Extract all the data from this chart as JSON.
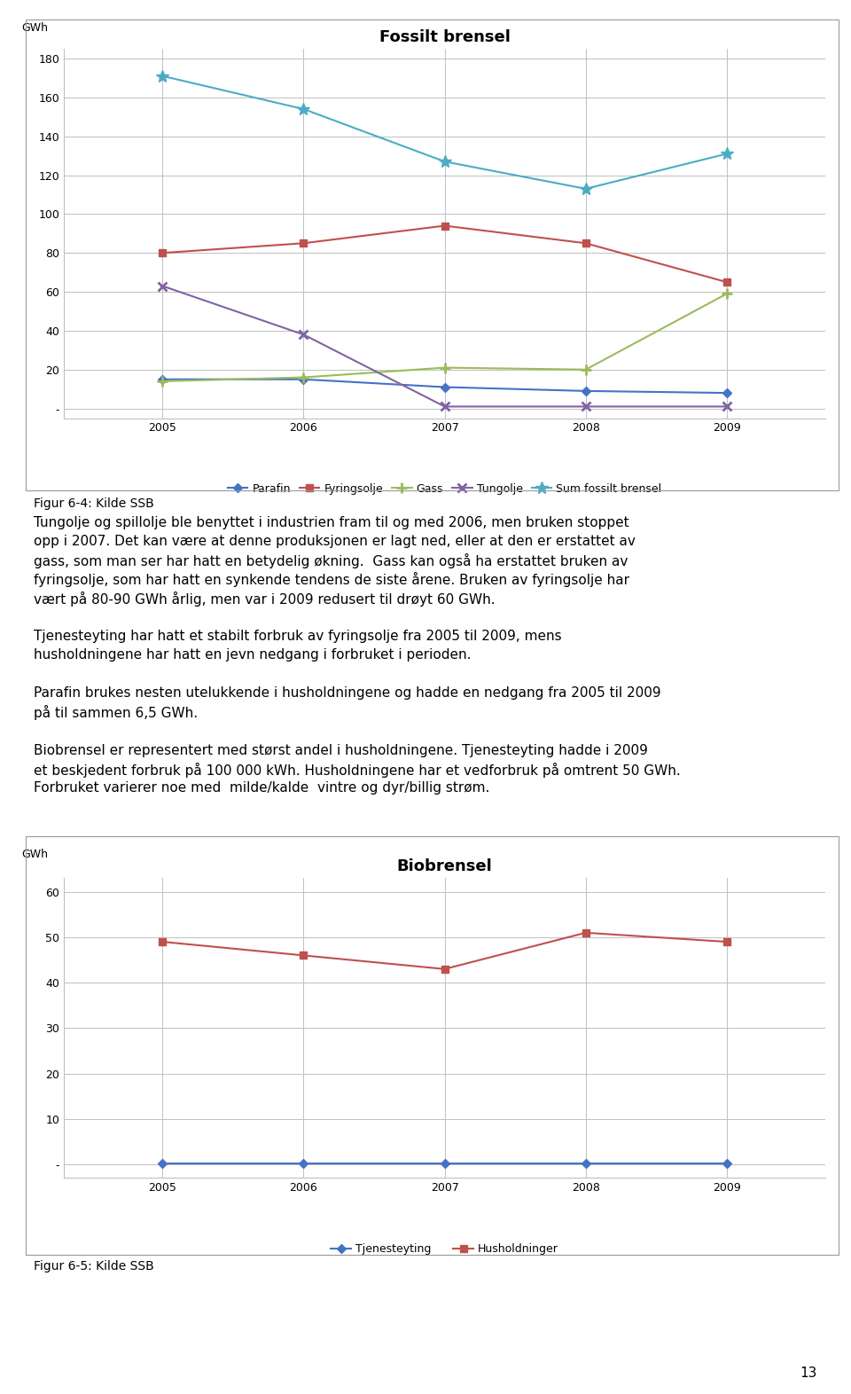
{
  "chart1": {
    "title": "Fossilt brensel",
    "ylabel": "GWh",
    "years": [
      2005,
      2006,
      2007,
      2008,
      2009
    ],
    "parafin": [
      15,
      15,
      11,
      9,
      8
    ],
    "fyringsolje": [
      80,
      85,
      94,
      85,
      65
    ],
    "gass": [
      14,
      16,
      21,
      20,
      59
    ],
    "tungolje": [
      63,
      38,
      1,
      1,
      1
    ],
    "sum_fossilt": [
      171,
      154,
      127,
      113,
      131
    ],
    "ylim": [
      -5,
      185
    ],
    "yticks": [
      0,
      20,
      40,
      60,
      80,
      100,
      120,
      140,
      160,
      180
    ],
    "ytick_labels": [
      "-",
      "20",
      "40",
      "60",
      "80",
      "100",
      "120",
      "140",
      "160",
      "180"
    ],
    "colors": {
      "parafin": "#4472C4",
      "fyringsolje": "#C0504D",
      "gass": "#9BBB59",
      "tungolje": "#8064A2",
      "sum_fossilt": "#4BACC6"
    },
    "caption": "Figur 6-4: Kilde SSB"
  },
  "text_paragraphs": [
    "Tungolje og spillolje ble benyttet i industrien fram til og med 2006, men bruken stoppet opp i 2007. Det kan være at denne produksjonen er lagt ned, eller at den er erstattet av gass, som man ser har hatt en betydelig økning.  Gass kan også ha erstattet bruken av  fyringsolje, som har hatt en synkende tendens de siste årene. Bruken av fyringsolje har vært på 80-90 GWh årlig, men var i 2009 redusert til drøyt 60 GWh.",
    "Tjenesteyting har hatt et stabilt forbruk av fyringsolje fra 2005 til 2009, mens husholdningene har hatt en jevn nedgang i forbruket i perioden.",
    "Parafin brukes nesten utelukkende i husholdningene og hadde en nedgang fra 2005 til 2009 på til sammen 6,5 GWh.",
    "Biobrensel er representert med størst andel i husholdningene. Tjenesteyting hadde i 2009 et beskjedent forbruk på 100 000 kWh. Husholdningene har et vedforbruk på omtrent 50 GWh. Forbruket varierer noe med  milde/kalde  vintre og dyr/billig strøm."
  ],
  "chart2": {
    "title": "Biobrensel",
    "ylabel": "GWh",
    "years": [
      2005,
      2006,
      2007,
      2008,
      2009
    ],
    "tjenesteyting": [
      0.1,
      0.1,
      0.1,
      0.1,
      0.1
    ],
    "husholdninger": [
      49,
      46,
      43,
      51,
      49
    ],
    "ylim": [
      -3,
      63
    ],
    "yticks": [
      0,
      10,
      20,
      30,
      40,
      50,
      60
    ],
    "ytick_labels": [
      "-",
      "10",
      "20",
      "30",
      "40",
      "50",
      "60"
    ],
    "colors": {
      "tjenesteyting": "#4472C4",
      "husholdninger": "#C0504D"
    },
    "caption": "Figur 6-5: Kilde SSB"
  },
  "page_number": "13",
  "background_color": "#FFFFFF",
  "chart_bg_color": "#FFFFFF",
  "grid_color": "#C0C0C0",
  "font_size_title": 13,
  "font_size_axis": 9,
  "font_size_legend": 9,
  "font_size_text": 11,
  "font_size_caption": 10
}
